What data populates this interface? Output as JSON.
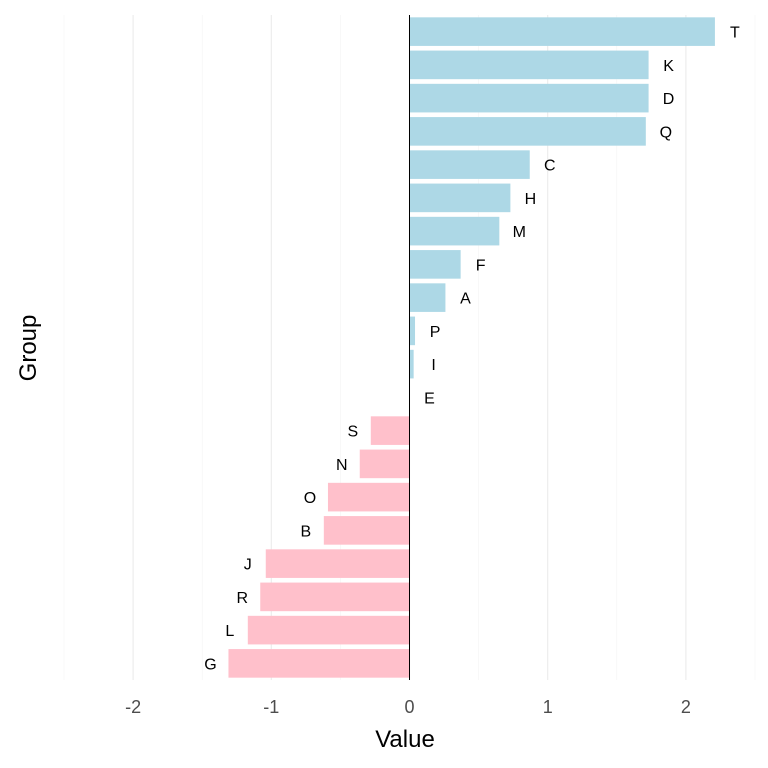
{
  "chart_data": {
    "type": "bar",
    "orientation": "horizontal",
    "xlabel": "Value",
    "ylabel": "Group",
    "xlim": [
      -2.5,
      2.5
    ],
    "xticks": [
      -2,
      -1,
      0,
      1,
      2
    ],
    "grid": true,
    "legend": "none",
    "colors": {
      "positive": "#add8e6",
      "negative": "#ffc0cb",
      "zero_line": "#000000"
    },
    "categories": [
      "T",
      "K",
      "D",
      "Q",
      "C",
      "H",
      "M",
      "F",
      "A",
      "P",
      "I",
      "E",
      "S",
      "N",
      "O",
      "B",
      "J",
      "R",
      "L",
      "G"
    ],
    "values": [
      2.21,
      1.73,
      1.73,
      1.71,
      0.87,
      0.73,
      0.65,
      0.37,
      0.26,
      0.04,
      0.03,
      0.0,
      -0.28,
      -0.36,
      -0.59,
      -0.62,
      -1.04,
      -1.08,
      -1.17,
      -1.31
    ]
  }
}
